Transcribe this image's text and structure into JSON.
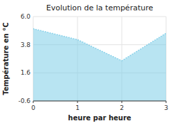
{
  "chart_data": {
    "type": "area",
    "title": "Evolution de la température",
    "xlabel": "heure par heure",
    "ylabel": "Température en °C",
    "x": [
      0,
      1,
      2,
      3
    ],
    "values": [
      5.05,
      4.2,
      2.55,
      4.7
    ],
    "color": "#7ecde8",
    "line_style": "dotted",
    "xlim": [
      0,
      3
    ],
    "ylim": [
      -0.6,
      6.0
    ],
    "xticks": [
      0,
      1,
      2,
      3
    ],
    "yticks": [
      -0.6,
      1.6,
      3.8,
      {
        "value": 6.0,
        "label": "6.0"
      }
    ],
    "grid": true
  }
}
